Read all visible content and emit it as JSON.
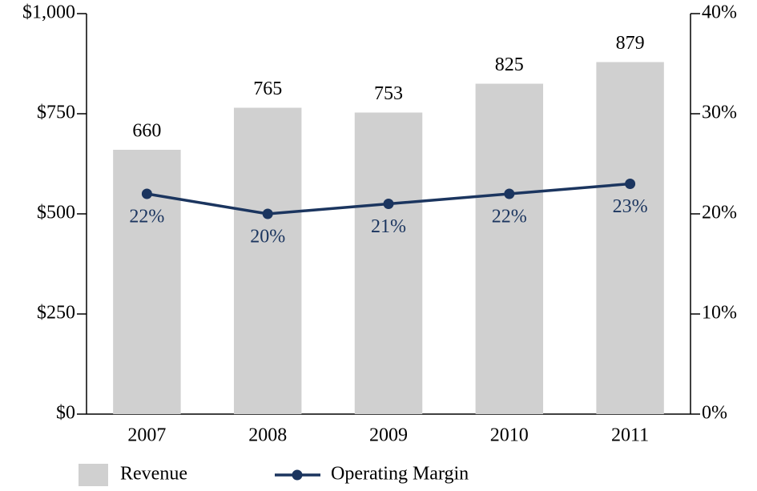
{
  "chart_data": {
    "type": "bar",
    "categories": [
      "2007",
      "2008",
      "2009",
      "2010",
      "2011"
    ],
    "series": [
      {
        "name": "Revenue",
        "type": "bar",
        "color": "#d0d0d0",
        "values": [
          660,
          765,
          753,
          825,
          879
        ]
      },
      {
        "name": "Operating Margin",
        "type": "line",
        "axis": "y2",
        "color": "#1b355f",
        "values": [
          22,
          20,
          21,
          22,
          23
        ],
        "value_labels": [
          "22%",
          "20%",
          "21%",
          "22%",
          "23%"
        ]
      }
    ],
    "ylim": [
      0,
      1000
    ],
    "yticks": [
      {
        "value": 0,
        "label": "$0"
      },
      {
        "value": 250,
        "label": "$250"
      },
      {
        "value": 500,
        "label": "$500"
      },
      {
        "value": 750,
        "label": "$750"
      },
      {
        "value": 1000,
        "label": "$1,000"
      }
    ],
    "y2lim": [
      0,
      40
    ],
    "y2ticks": [
      {
        "value": 0,
        "label": "0%"
      },
      {
        "value": 10,
        "label": "10%"
      },
      {
        "value": 20,
        "label": "20%"
      },
      {
        "value": 30,
        "label": "30%"
      },
      {
        "value": 40,
        "label": "40%"
      }
    ],
    "legend": "bottom"
  }
}
